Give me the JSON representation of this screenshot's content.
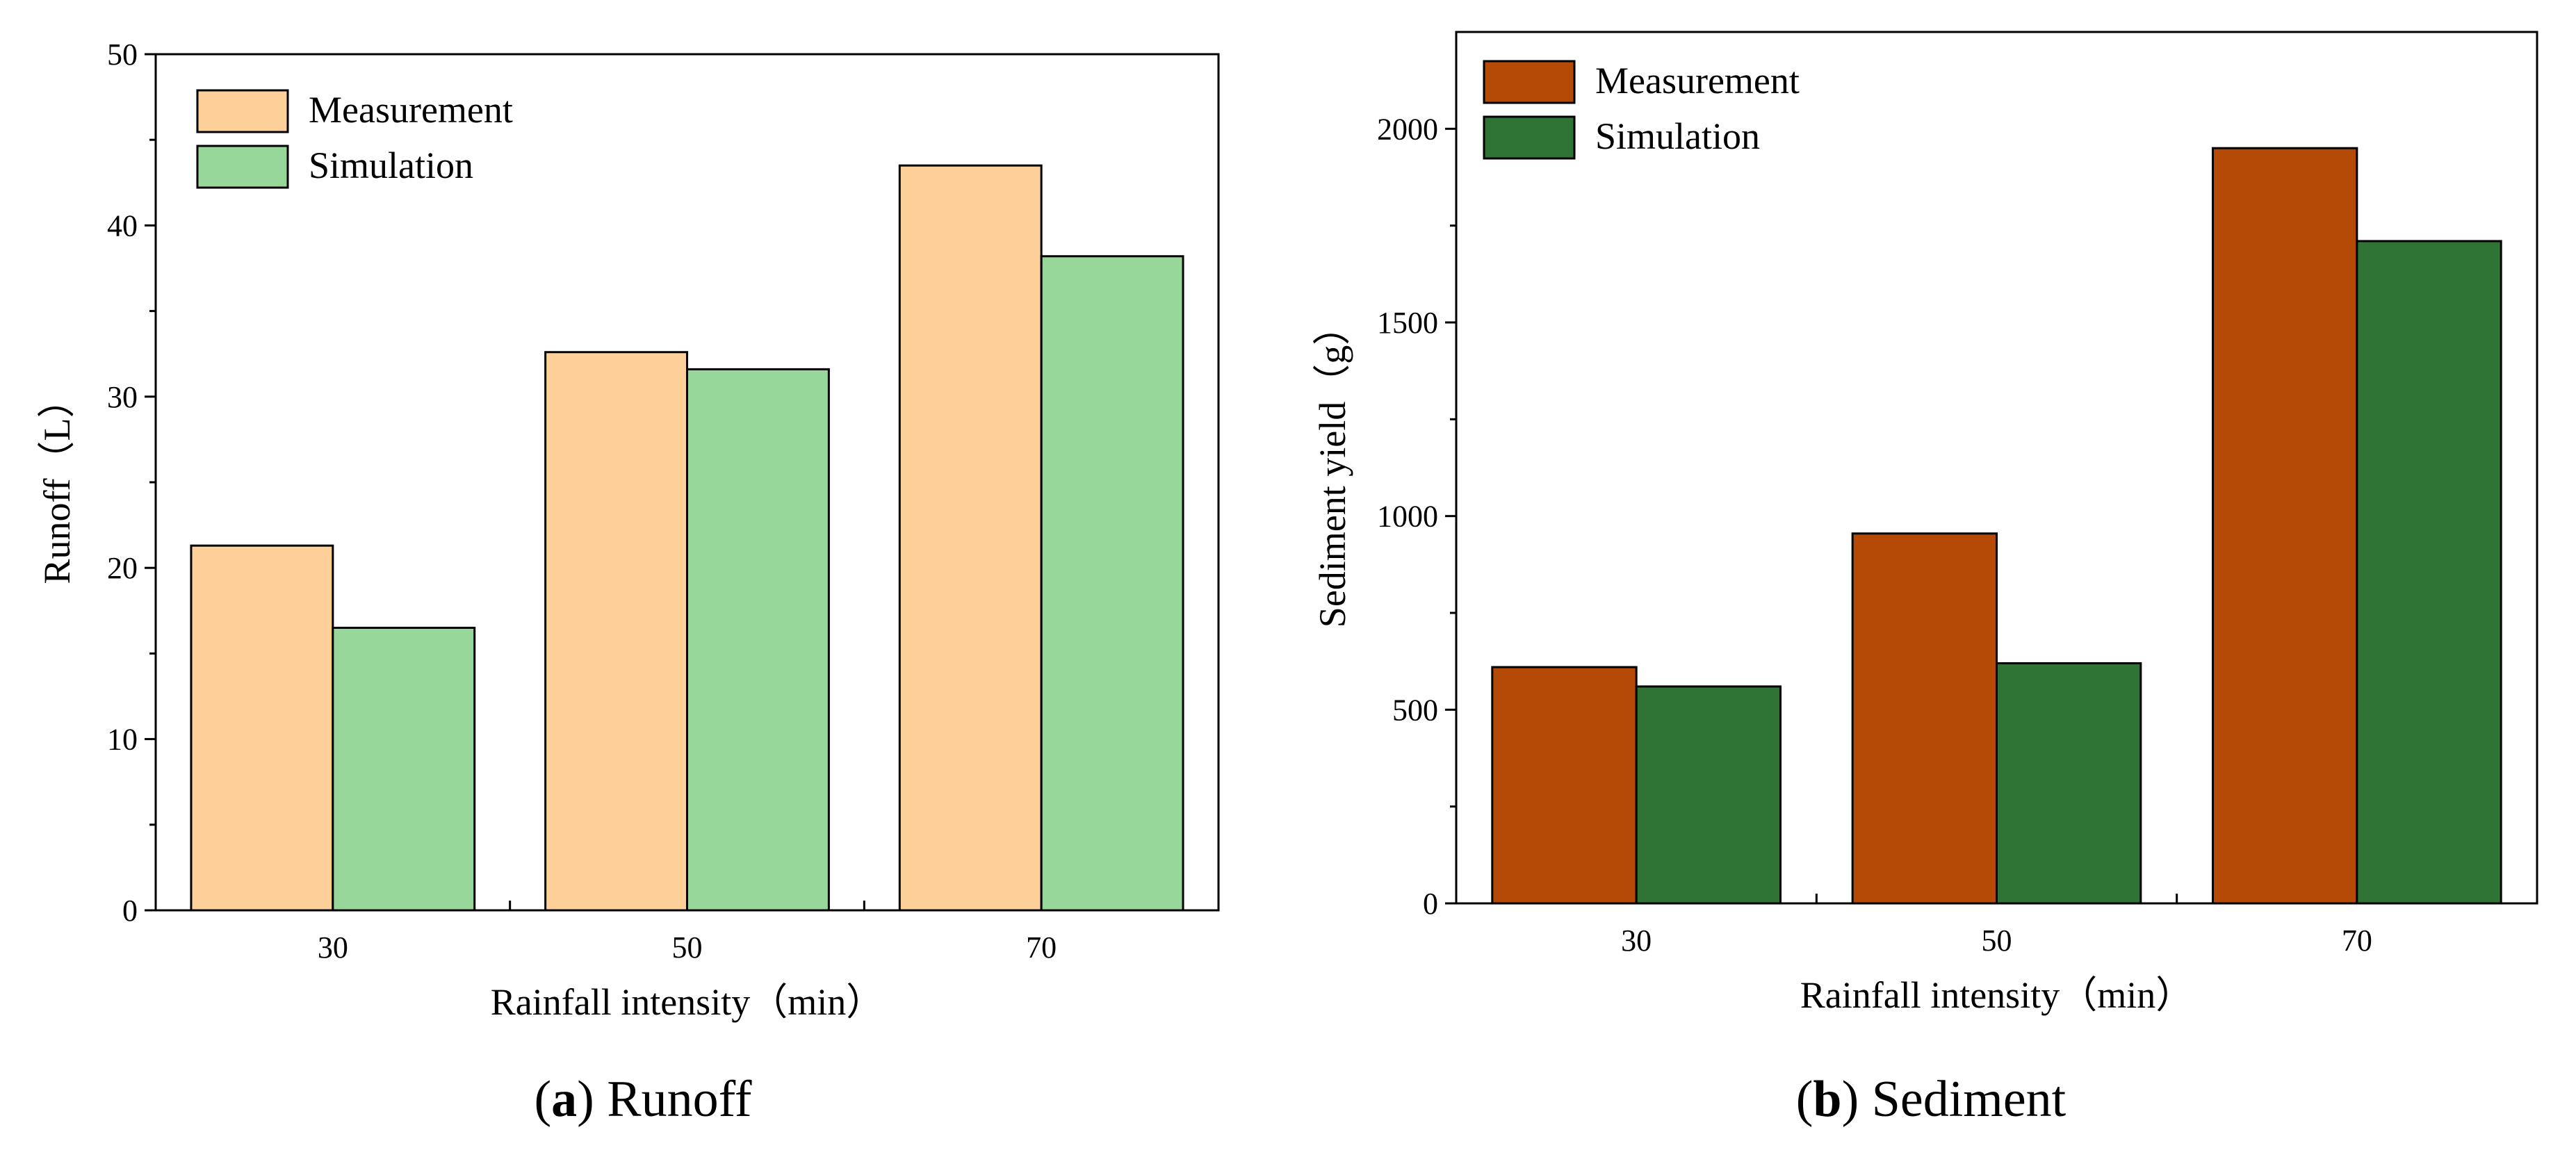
{
  "panels": [
    {
      "caption": {
        "letter": "a",
        "text": "Runoff"
      },
      "chart_data": {
        "type": "bar",
        "categories": [
          "30",
          "50",
          "70"
        ],
        "series": [
          {
            "name": "Measurement",
            "values": [
              21.3,
              32.6,
              43.5
            ],
            "color": "#fdd09a"
          },
          {
            "name": "Simulation",
            "values": [
              16.5,
              31.6,
              38.2
            ],
            "color": "#98d79a"
          }
        ],
        "title": "",
        "xlabel": "Rainfall intensity（min）",
        "ylabel": "Runoff（L）",
        "ylim": [
          0,
          50
        ],
        "yticks": [
          "0",
          "10",
          "20",
          "30",
          "40",
          "50"
        ],
        "legend_position": "top-left",
        "grid": false
      }
    },
    {
      "caption": {
        "letter": "b",
        "text": "Sediment"
      },
      "chart_data": {
        "type": "bar",
        "categories": [
          "30",
          "50",
          "70"
        ],
        "series": [
          {
            "name": "Measurement",
            "values": [
              610,
              955,
              1950
            ],
            "color": "#b44a06"
          },
          {
            "name": "Simulation",
            "values": [
              560,
              620,
              1710
            ],
            "color": "#2f7434"
          }
        ],
        "title": "",
        "xlabel": "Rainfall intensity（min）",
        "ylabel": "Sediment yield（g）",
        "ylim": [
          0,
          2250
        ],
        "yticks": [
          "0",
          "500",
          "1000",
          "1500",
          "2000"
        ],
        "legend_position": "top-left",
        "grid": false
      }
    }
  ]
}
